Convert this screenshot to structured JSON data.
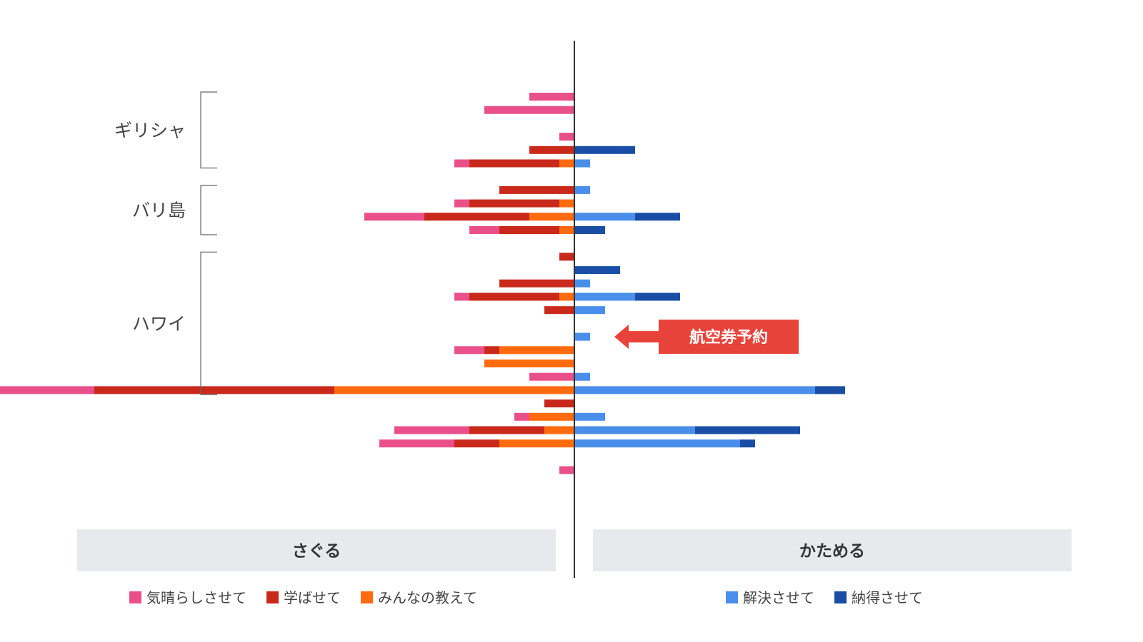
{
  "chart_data": {
    "type": "bar",
    "orientation": "horizontal-diverging",
    "left_panel": {
      "label": "さぐる",
      "series": [
        {
          "name": "気晴らしさせて",
          "color": "#E9508A"
        },
        {
          "name": "学ばせて",
          "color": "#C8291A"
        },
        {
          "name": "みんなの教えて",
          "color": "#FF6B0E"
        }
      ]
    },
    "right_panel": {
      "label": "かためる",
      "series": [
        {
          "name": "解決させて",
          "color": "#4A8EEB"
        },
        {
          "name": "納得させて",
          "color": "#1A4EA6"
        }
      ]
    },
    "groups": [
      {
        "label": "ギリシャ",
        "first_row": 0,
        "last_row": 5
      },
      {
        "label": "バリ島",
        "first_row": 7,
        "last_row": 10
      },
      {
        "label": "ハワイ",
        "first_row": 12,
        "last_row": 22
      }
    ],
    "rows": [
      {
        "left": [
          3,
          0,
          0
        ],
        "right": [
          0,
          0
        ]
      },
      {
        "left": [
          6,
          0,
          0
        ],
        "right": [
          0,
          0
        ]
      },
      {
        "left": [
          0,
          0,
          0
        ],
        "right": [
          0,
          0
        ]
      },
      {
        "left": [
          1,
          0,
          0
        ],
        "right": [
          0,
          0
        ]
      },
      {
        "left": [
          0,
          3,
          0
        ],
        "right": [
          0,
          4
        ]
      },
      {
        "left": [
          1,
          6,
          1
        ],
        "right": [
          1,
          0
        ]
      },
      {
        "left": [
          0,
          0,
          0
        ],
        "right": [
          0,
          0
        ]
      },
      {
        "left": [
          0,
          5,
          0
        ],
        "right": [
          1,
          0
        ]
      },
      {
        "left": [
          1,
          6,
          1
        ],
        "right": [
          0,
          0
        ]
      },
      {
        "left": [
          4,
          7,
          3
        ],
        "right": [
          4,
          3
        ]
      },
      {
        "left": [
          2,
          4,
          1
        ],
        "right": [
          0,
          2
        ]
      },
      {
        "left": [
          0,
          0,
          0
        ],
        "right": [
          0,
          0
        ]
      },
      {
        "left": [
          0,
          1,
          0
        ],
        "right": [
          0,
          0
        ]
      },
      {
        "left": [
          0,
          0,
          0
        ],
        "right": [
          0,
          3
        ]
      },
      {
        "left": [
          0,
          5,
          0
        ],
        "right": [
          1,
          0
        ]
      },
      {
        "left": [
          1,
          6,
          1
        ],
        "right": [
          4,
          3
        ]
      },
      {
        "left": [
          0,
          2,
          0
        ],
        "right": [
          2,
          0
        ]
      },
      {
        "left": [
          0,
          0,
          0
        ],
        "right": [
          0,
          0
        ]
      },
      {
        "left": [
          0,
          0,
          0
        ],
        "right": [
          1,
          0
        ]
      },
      {
        "left": [
          2,
          1,
          5
        ],
        "right": [
          0,
          0
        ]
      },
      {
        "left": [
          0,
          0,
          6
        ],
        "right": [
          0,
          0
        ]
      },
      {
        "left": [
          3,
          0,
          0
        ],
        "right": [
          1,
          0
        ]
      },
      {
        "left": [
          6.5,
          16,
          16
        ],
        "right": [
          16,
          2
        ]
      },
      {
        "left": [
          0,
          2,
          0
        ],
        "right": [
          0,
          0
        ]
      },
      {
        "left": [
          1,
          0,
          3
        ],
        "right": [
          2,
          0
        ]
      },
      {
        "left": [
          5,
          5,
          2
        ],
        "right": [
          8,
          7
        ]
      },
      {
        "left": [
          5,
          3,
          5
        ],
        "right": [
          11,
          1
        ]
      },
      {
        "left": [
          0,
          0,
          0
        ],
        "right": [
          0,
          0
        ]
      },
      {
        "left": [
          1,
          0,
          0
        ],
        "right": [
          0,
          0
        ]
      }
    ],
    "annotation": {
      "text": "航空券予約",
      "row": 18,
      "color": "#E8433A"
    }
  }
}
